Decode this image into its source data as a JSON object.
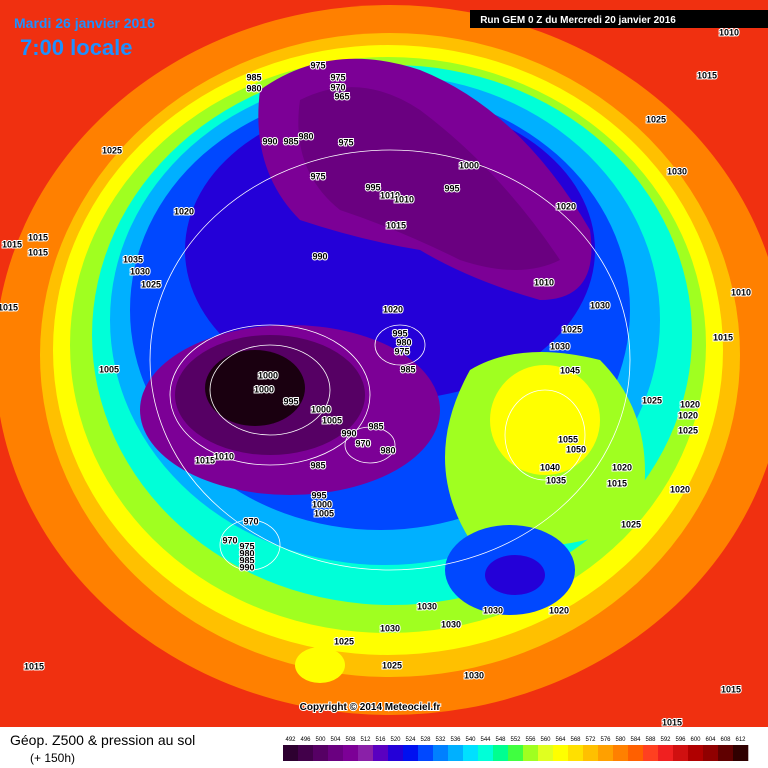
{
  "header": {
    "date": "Mardi 26 janvier 2016",
    "time": "7:00 locale",
    "run": "Run GEM 0 Z du Mercredi 20 janvier 2016"
  },
  "copyright": "Copyright © 2014 Meteociel.fr",
  "legend": {
    "title": "Géop. Z500 & pression au sol",
    "subtitle": "(+ 150h)",
    "scale": [
      492,
      496,
      500,
      504,
      508,
      512,
      516,
      520,
      524,
      528,
      532,
      536,
      540,
      544,
      548,
      552,
      556,
      560,
      564,
      568,
      572,
      576,
      580,
      584,
      588,
      592,
      596,
      600,
      604,
      608,
      612
    ],
    "colors": [
      "#2d0030",
      "#42004a",
      "#560064",
      "#6a0080",
      "#7c0096",
      "#8a20a8",
      "#5a00c0",
      "#2400d8",
      "#0010f0",
      "#0048ff",
      "#0080ff",
      "#00b0ff",
      "#00e0ff",
      "#00ffd8",
      "#00ff90",
      "#40ff40",
      "#a0ff20",
      "#e0ff20",
      "#ffff00",
      "#ffe000",
      "#ffc000",
      "#ffa000",
      "#ff8000",
      "#ff6000",
      "#ff4020",
      "#f02020",
      "#d01010",
      "#b00000",
      "#900000",
      "#600000",
      "#300000"
    ]
  },
  "isobar_labels": [
    "985",
    "980",
    "975",
    "975",
    "970",
    "965",
    "990",
    "985",
    "980",
    "975",
    "975",
    "1025",
    "1000",
    "995",
    "1010",
    "1010",
    "995",
    "1015",
    "1020",
    "990",
    "1010",
    "1020",
    "1035",
    "1030",
    "1025",
    "1015",
    "1015",
    "1015",
    "1015",
    "1005",
    "1020",
    "995",
    "980",
    "975",
    "985",
    "1000",
    "1000",
    "995",
    "1000",
    "1005",
    "985",
    "990",
    "970",
    "980",
    "985",
    "1015",
    "1010",
    "995",
    "1000",
    "1005",
    "970",
    "970",
    "975",
    "980",
    "985",
    "990",
    "1030",
    "1025",
    "1030",
    "1045",
    "1025",
    "1055",
    "1050",
    "1040",
    "1035",
    "1020",
    "1015",
    "1020",
    "1020",
    "1025",
    "1020",
    "1025",
    "1030",
    "1025",
    "1015",
    "1010",
    "1010",
    "1015",
    "1030",
    "1030",
    "1020",
    "1030",
    "1030",
    "1025",
    "1025",
    "1030",
    "1015",
    "1015",
    "1015"
  ]
}
